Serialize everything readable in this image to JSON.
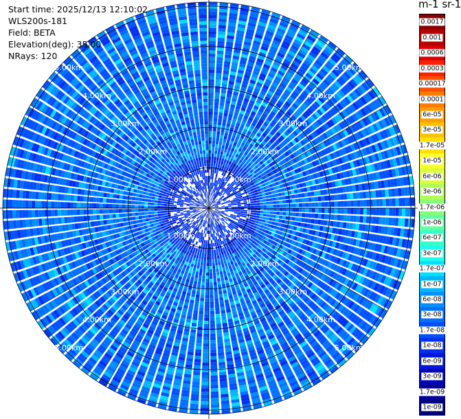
{
  "info": {
    "start_time": "Start time: 2025/12/13 12:10:02",
    "instrument": "WLS200s-181",
    "field": "Field: BETA",
    "elevation": "Elevation(deg): 35.00",
    "nrays": "NRays: 120"
  },
  "colorbar_title": "m-1 sr-1",
  "chart_data": {
    "type": "heatmap",
    "projection": "polar (PPI scan)",
    "range_rings_km": [
      1,
      2,
      3,
      4,
      5
    ],
    "ring_labels": [
      "1.00km",
      "2.00km",
      "3.00km",
      "4.00km",
      "5.00km"
    ],
    "max_range_km": 5.1,
    "n_rays": 120,
    "colorbar": {
      "scale": "log",
      "ticks": [
        "0.0017",
        "0.001",
        "0.0006",
        "0.0003",
        "0.00017",
        "0.0001",
        "6e-05",
        "3e-05",
        "1.7e-05",
        "1e-05",
        "6e-06",
        "3e-06",
        "1.7e-06",
        "1e-06",
        "6e-07",
        "3e-07",
        "1.7e-07",
        "1e-07",
        "6e-08",
        "3e-08",
        "1.7e-08",
        "1e-08",
        "6e-09",
        "3e-09",
        "1.7e-09",
        "1e-09"
      ],
      "colors": [
        "#8a0000",
        "#b40000",
        "#dc0000",
        "#ff2000",
        "#ff5000",
        "#ff7a00",
        "#ff9e00",
        "#ffc000",
        "#ffe000",
        "#ffff20",
        "#d8ff38",
        "#b0ff58",
        "#88ff78",
        "#60ffa0",
        "#38ffc8",
        "#20ffee",
        "#00e0ff",
        "#00b8ff",
        "#0090ff",
        "#0070ff",
        "#0050ff",
        "#0030f0",
        "#0018d8",
        "#0008b8",
        "#00009c",
        "#000080"
      ]
    }
  }
}
